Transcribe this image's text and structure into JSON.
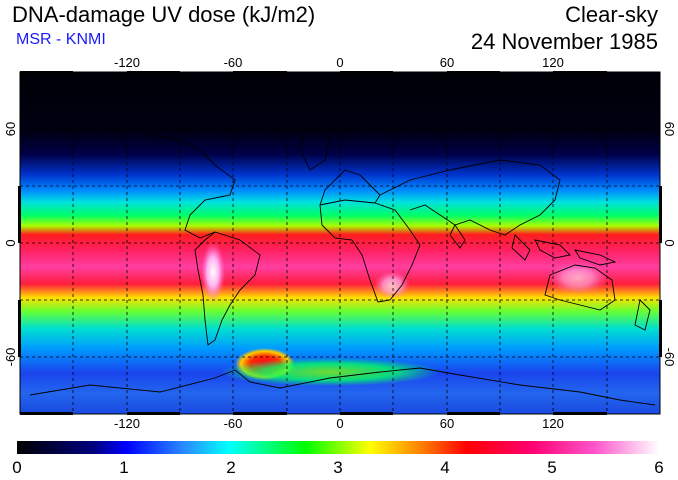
{
  "header": {
    "title": "DNA-damage UV dose (kJ/m2)",
    "source": "MSR - KNMI",
    "sky_condition": "Clear-sky",
    "date": "24 November 1985"
  },
  "map": {
    "lon_ticks": [
      "-120",
      "-60",
      "0",
      "60",
      "120"
    ],
    "lat_ticks": {
      "n60": "60",
      "eq": "0",
      "s60": "-60"
    },
    "projection_extent": {
      "lon": [
        -180,
        180
      ],
      "lat": [
        -90,
        90
      ]
    }
  },
  "colorbar": {
    "min": 0,
    "max": 6,
    "labels": [
      "0",
      "1",
      "2",
      "3",
      "4",
      "5",
      "6"
    ],
    "stops": [
      "#000000",
      "#0000cc",
      "#3399ff",
      "#00ffff",
      "#00ff00",
      "#ffff00",
      "#ff8000",
      "#ff0000",
      "#ff0080",
      "#ff66dd",
      "#ffffff"
    ]
  }
}
